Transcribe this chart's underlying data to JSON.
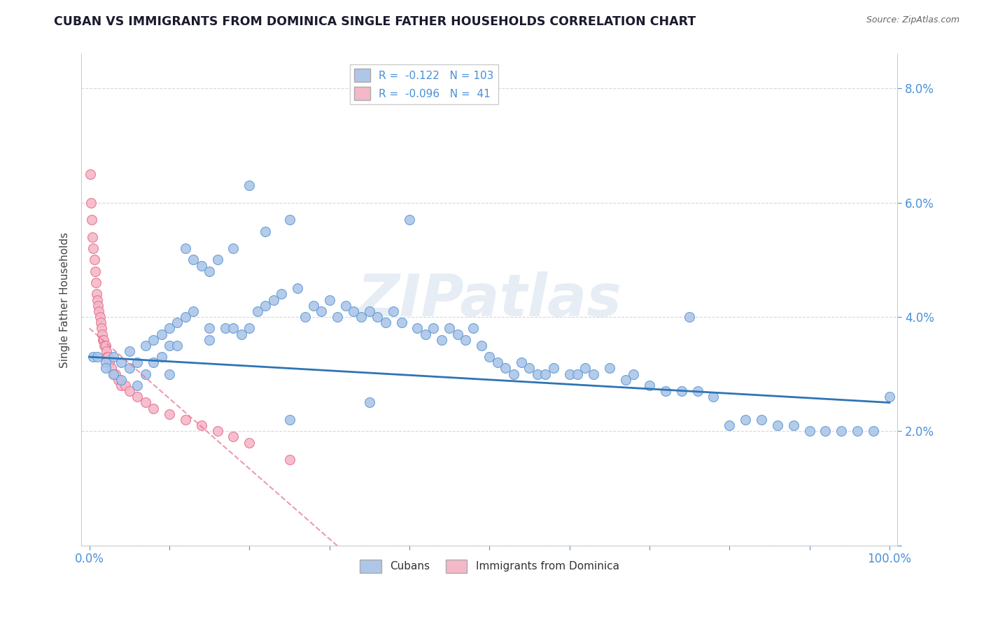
{
  "title": "CUBAN VS IMMIGRANTS FROM DOMINICA SINGLE FATHER HOUSEHOLDS CORRELATION CHART",
  "source": "Source: ZipAtlas.com",
  "ylabel": "Single Father Households",
  "x_ticks": [
    0.0,
    0.1,
    0.2,
    0.3,
    0.4,
    0.5,
    0.6,
    0.7,
    0.8,
    0.9,
    1.0
  ],
  "y_ticks": [
    0.0,
    0.02,
    0.04,
    0.06,
    0.08
  ],
  "y_tick_labels": [
    "",
    "2.0%",
    "4.0%",
    "6.0%",
    "8.0%"
  ],
  "xlim": [
    -0.01,
    1.01
  ],
  "ylim": [
    0.0,
    0.086
  ],
  "R_cuban": -0.122,
  "N_cuban": 103,
  "R_dominica": -0.096,
  "N_dominica": 41,
  "cuban_color": "#aec6e8",
  "cuban_edge": "#5b9bd5",
  "dominica_color": "#f4b8c8",
  "dominica_edge": "#e87090",
  "trend_cuban_color": "#2e75b6",
  "trend_dominica_color": "#e87090",
  "watermark": "ZIPatlas",
  "background_color": "#ffffff",
  "grid_color": "#c8c8c8",
  "cuban_x": [
    0.005,
    0.01,
    0.02,
    0.02,
    0.03,
    0.03,
    0.04,
    0.04,
    0.05,
    0.05,
    0.06,
    0.06,
    0.07,
    0.07,
    0.08,
    0.08,
    0.09,
    0.09,
    0.1,
    0.1,
    0.1,
    0.11,
    0.11,
    0.12,
    0.12,
    0.13,
    0.13,
    0.14,
    0.15,
    0.15,
    0.16,
    0.17,
    0.18,
    0.18,
    0.19,
    0.2,
    0.2,
    0.21,
    0.22,
    0.22,
    0.23,
    0.24,
    0.25,
    0.26,
    0.27,
    0.28,
    0.29,
    0.3,
    0.31,
    0.32,
    0.33,
    0.34,
    0.35,
    0.36,
    0.37,
    0.38,
    0.39,
    0.4,
    0.41,
    0.42,
    0.43,
    0.44,
    0.45,
    0.46,
    0.47,
    0.48,
    0.49,
    0.5,
    0.51,
    0.52,
    0.53,
    0.54,
    0.55,
    0.56,
    0.57,
    0.58,
    0.6,
    0.61,
    0.62,
    0.63,
    0.65,
    0.67,
    0.68,
    0.7,
    0.72,
    0.74,
    0.75,
    0.76,
    0.78,
    0.8,
    0.82,
    0.84,
    0.86,
    0.88,
    0.9,
    0.92,
    0.94,
    0.96,
    0.98,
    1.0,
    0.15,
    0.25,
    0.35
  ],
  "cuban_y": [
    0.033,
    0.033,
    0.032,
    0.031,
    0.033,
    0.03,
    0.032,
    0.029,
    0.034,
    0.031,
    0.032,
    0.028,
    0.035,
    0.03,
    0.036,
    0.032,
    0.037,
    0.033,
    0.038,
    0.035,
    0.03,
    0.039,
    0.035,
    0.04,
    0.052,
    0.041,
    0.05,
    0.049,
    0.048,
    0.036,
    0.05,
    0.038,
    0.052,
    0.038,
    0.037,
    0.063,
    0.038,
    0.041,
    0.055,
    0.042,
    0.043,
    0.044,
    0.057,
    0.045,
    0.04,
    0.042,
    0.041,
    0.043,
    0.04,
    0.042,
    0.041,
    0.04,
    0.041,
    0.04,
    0.039,
    0.041,
    0.039,
    0.057,
    0.038,
    0.037,
    0.038,
    0.036,
    0.038,
    0.037,
    0.036,
    0.038,
    0.035,
    0.033,
    0.032,
    0.031,
    0.03,
    0.032,
    0.031,
    0.03,
    0.03,
    0.031,
    0.03,
    0.03,
    0.031,
    0.03,
    0.031,
    0.029,
    0.03,
    0.028,
    0.027,
    0.027,
    0.04,
    0.027,
    0.026,
    0.021,
    0.022,
    0.022,
    0.021,
    0.021,
    0.02,
    0.02,
    0.02,
    0.02,
    0.02,
    0.026,
    0.038,
    0.022,
    0.025
  ],
  "dominica_x": [
    0.001,
    0.002,
    0.003,
    0.004,
    0.005,
    0.006,
    0.007,
    0.008,
    0.009,
    0.01,
    0.011,
    0.012,
    0.013,
    0.014,
    0.015,
    0.016,
    0.017,
    0.018,
    0.019,
    0.02,
    0.021,
    0.022,
    0.023,
    0.025,
    0.027,
    0.03,
    0.033,
    0.036,
    0.04,
    0.045,
    0.05,
    0.06,
    0.07,
    0.08,
    0.1,
    0.12,
    0.14,
    0.16,
    0.18,
    0.2,
    0.25
  ],
  "dominica_y": [
    0.065,
    0.06,
    0.057,
    0.054,
    0.052,
    0.05,
    0.048,
    0.046,
    0.044,
    0.043,
    0.042,
    0.041,
    0.04,
    0.039,
    0.038,
    0.037,
    0.036,
    0.036,
    0.035,
    0.035,
    0.034,
    0.033,
    0.033,
    0.032,
    0.031,
    0.03,
    0.03,
    0.029,
    0.028,
    0.028,
    0.027,
    0.026,
    0.025,
    0.024,
    0.023,
    0.022,
    0.021,
    0.02,
    0.019,
    0.018,
    0.015
  ]
}
